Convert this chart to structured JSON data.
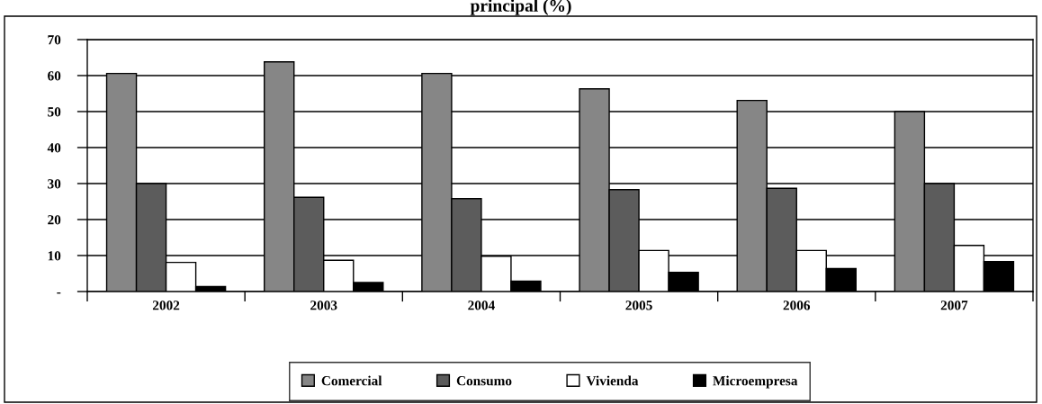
{
  "chart_data": {
    "type": "bar",
    "title": "principal (%)",
    "categories": [
      "2002",
      "2003",
      "2004",
      "2005",
      "2006",
      "2007"
    ],
    "series": [
      {
        "name": "Comercial",
        "color": "#868686",
        "values": [
          60.6,
          63.8,
          60.6,
          56.3,
          53.1,
          50.0
        ]
      },
      {
        "name": "Consumo",
        "color": "#5c5c5c",
        "values": [
          30.0,
          26.2,
          25.8,
          28.3,
          28.7,
          30.0
        ]
      },
      {
        "name": "Vivienda",
        "color": "#ffffff",
        "values": [
          8.1,
          8.7,
          9.8,
          11.4,
          11.4,
          12.8
        ]
      },
      {
        "name": "Microempresa",
        "color": "#000000",
        "values": [
          1.4,
          2.5,
          2.9,
          5.3,
          6.4,
          8.3
        ]
      }
    ],
    "ylim": [
      0,
      70
    ],
    "yticks": [
      {
        "value": 0,
        "label": "-"
      },
      10,
      20,
      30,
      40,
      50,
      60,
      70
    ],
    "grid": "y",
    "legend": "bottom"
  }
}
